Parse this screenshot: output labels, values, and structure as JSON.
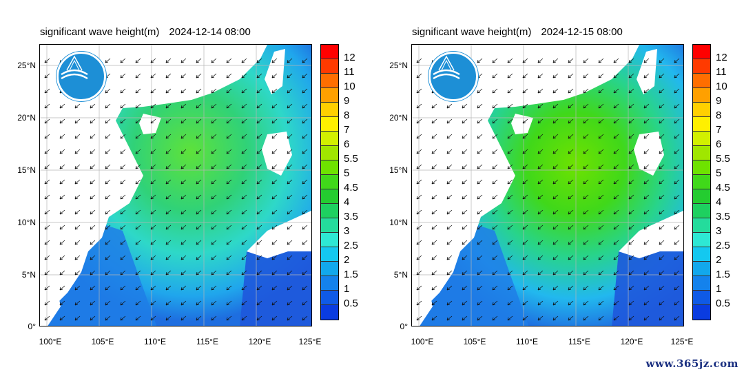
{
  "panels": [
    {
      "title": "significant wave height(m)",
      "timestamp": "2024-12-14 08:00"
    },
    {
      "title": "significant wave height(m)",
      "timestamp": "2024-12-15 08:00"
    }
  ],
  "y_axis_labels": [
    "25°N",
    "20°N",
    "15°N",
    "10°N",
    "5°N",
    "0°"
  ],
  "x_axis_labels": [
    "100°E",
    "105°E",
    "110°E",
    "115°E",
    "120°E",
    "125°E"
  ],
  "colorbar": {
    "labels": [
      "12",
      "11",
      "10",
      "9",
      "8",
      "7",
      "6",
      "5.5",
      "5",
      "4.5",
      "4",
      "3.5",
      "3",
      "2.5",
      "2",
      "1.5",
      "1",
      "0.5"
    ],
    "colors": [
      "#ff0000",
      "#ff3a00",
      "#ff6e00",
      "#ffa000",
      "#ffd000",
      "#fff000",
      "#d2f000",
      "#a0e600",
      "#6ee200",
      "#40d81a",
      "#24cc30",
      "#1ed060",
      "#24dc9c",
      "#2ee8d4",
      "#14c8f0",
      "#12a8ec",
      "#1482ec",
      "#0f5ae6",
      "#0a3ce0"
    ]
  },
  "logo": {
    "name": "agency-logo"
  },
  "footer": {
    "text": "www.365jz.com"
  },
  "colors": {
    "land": "#ffffff",
    "sea_low": "#1e6ee0",
    "sea_mid": "#22b8ee",
    "sea_high": "#5ee23a"
  }
}
